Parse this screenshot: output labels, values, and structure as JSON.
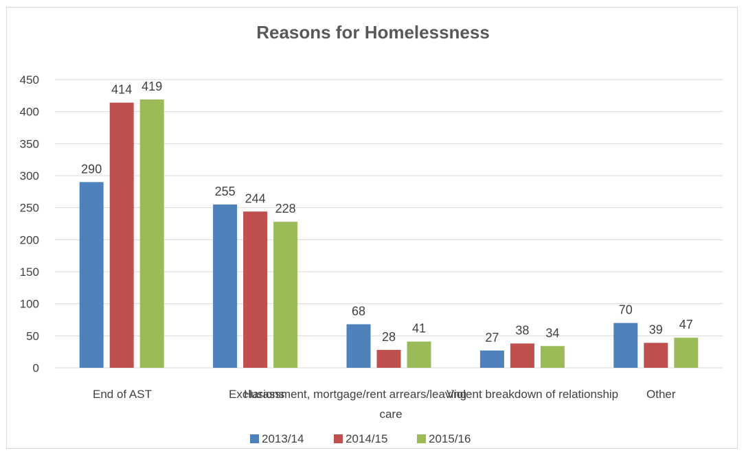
{
  "chart_data": {
    "type": "bar",
    "title": "Reasons for Homelessness",
    "xlabel": "",
    "ylabel": "",
    "ylim": [
      0,
      450
    ],
    "yticks": [
      0,
      50,
      100,
      150,
      200,
      250,
      300,
      350,
      400,
      450
    ],
    "categories": [
      "End of AST",
      "Exclusions",
      "Harassment, mortgage/rent arrears/leaving care",
      "Violent breakdown of relationship",
      "Other"
    ],
    "series": [
      {
        "name": "2013/14",
        "color": "#4f81bd",
        "values": [
          290,
          255,
          68,
          27,
          70
        ]
      },
      {
        "name": "2014/15",
        "color": "#c0504d",
        "values": [
          414,
          244,
          28,
          38,
          39
        ]
      },
      {
        "name": "2015/16",
        "color": "#9bbb59",
        "values": [
          419,
          228,
          41,
          34,
          47
        ]
      }
    ],
    "grid": true,
    "legend": "bottom",
    "data_labels": true
  }
}
